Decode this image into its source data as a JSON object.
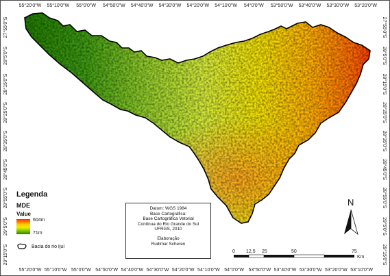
{
  "map": {
    "top_ticks": [
      "55°20'0\"W",
      "55°10'0\"W",
      "55°0'0\"W",
      "54°50'0\"W",
      "54°40'0\"W",
      "54°30'0\"W",
      "54°20'0\"W",
      "54°10'0\"W",
      "54°0'0\"W",
      "53°50'0\"W",
      "53°40'0\"W",
      "53°30'0\"W",
      "53°20'0\"W"
    ],
    "bottom_ticks": [
      "55°20'0\"W",
      "55°10'0\"W",
      "55°0'0\"W",
      "54°50'0\"W",
      "54°40'0\"W",
      "54°30'0\"W",
      "54°20'0\"W",
      "54°10'0\"W",
      "54°0'0\"W",
      "53°50'0\"W",
      "53°40'0\"W",
      "53°30'0\"W",
      "53°20'0\"W",
      "53°10'0\"W"
    ],
    "left_ticks": [
      "27°55'0\"S",
      "28°5'0\"S",
      "28°15'0\"S",
      "28°25'0\"S",
      "28°35'0\"S",
      "28°45'0\"S",
      "28°55'0\"S",
      "29°5'0\"S",
      "29°15'0\"S"
    ],
    "right_ticks": [
      "27°55'0\"S",
      "28°5'0\"S",
      "28°15'0\"S",
      "28°25'0\"S",
      "28°35'0\"S",
      "28°45'0\"S",
      "28°55'0\"S",
      "29°5'0\"S",
      "29°15'0\"S"
    ]
  },
  "legend": {
    "title": "Legenda",
    "layer": "MDE",
    "value_label": "Value",
    "max": "604m",
    "min": "71m",
    "basin": "Bacia do rio Ijuí"
  },
  "info": {
    "datum": "Datum: WGS 1984",
    "base_title": "Base Cartográfica:",
    "base_line1": "Base Cartográfica Vetorial",
    "base_line2": "Contínua do Rio Grande do Sul",
    "base_line3": "UFRGS, 2010",
    "elab_title": "Elaboração",
    "author": "Rudimar Scheren"
  },
  "north_label": "N",
  "scale": {
    "labels": [
      "0",
      "12,5",
      "25",
      "50",
      "75"
    ],
    "unit": "Km"
  },
  "colors": {
    "ramp_high": "#ff2a00",
    "ramp_mid": "#e9f000",
    "ramp_low": "#2e7f00",
    "outline": "#000000"
  }
}
